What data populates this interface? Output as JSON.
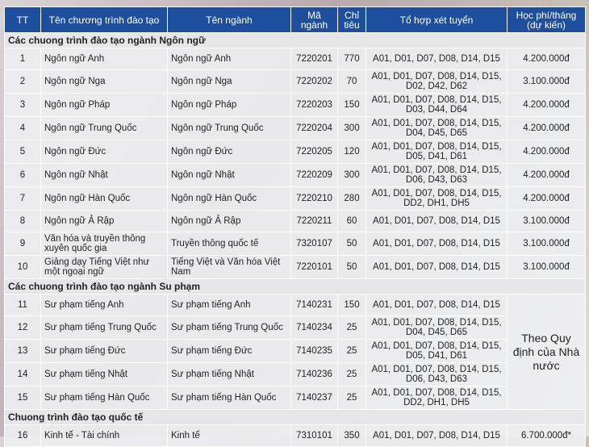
{
  "table": {
    "header": [
      "TT",
      "Tên chương trình đào tạo",
      "Tên ngành",
      "Mã ngành",
      "Chỉ tiêu",
      "Tổ hợp xét tuyển",
      "Học phí/tháng (dự kiến)"
    ],
    "sections": [
      {
        "title": "Các chuong trình đào tạo ngành Ngôn ngữ",
        "rows": [
          [
            "1",
            "Ngôn ngữ Anh",
            "Ngôn ngữ Anh",
            "7220201",
            "770",
            "A01, D01, D07, D08, D14, D15",
            "4.200.000đ"
          ],
          [
            "2",
            "Ngôn ngữ Nga",
            "Ngôn ngữ Nga",
            "7220202",
            "70",
            "A01, D01, D07, D08, D14, D15, D02, D42, D62",
            "3.100.000đ"
          ],
          [
            "3",
            "Ngôn ngữ Pháp",
            "Ngôn ngữ Pháp",
            "7220203",
            "150",
            "A01, D01, D07, D08, D14, D15, D03, D44, D64",
            "4.200.000đ"
          ],
          [
            "4",
            "Ngôn ngữ Trung Quốc",
            "Ngôn ngữ Trung Quốc",
            "7220204",
            "300",
            "A01, D01, D07, D08, D14, D15, D04, D45, D65",
            "4.200.000đ"
          ],
          [
            "5",
            "Ngôn ngữ Đức",
            "Ngôn ngữ Đức",
            "7220205",
            "120",
            "A01, D01, D07, D08, D14, D15, D05, D41, D61",
            "4.200.000đ"
          ],
          [
            "6",
            "Ngôn ngữ Nhật",
            "Ngôn ngữ Nhật",
            "7220209",
            "300",
            "A01, D01, D07, D08, D14, D15, D06, D43, D63",
            "4.200.000đ"
          ],
          [
            "7",
            "Ngôn ngữ Hàn Quốc",
            "Ngôn ngữ Hàn Quốc",
            "7220210",
            "280",
            "A01, D01, D07, D08, D14, D15, DD2, DH1, DH5",
            "4.200.000đ"
          ],
          [
            "8",
            "Ngôn ngữ Ả Rập",
            "Ngôn ngữ Ả Rập",
            "7220211",
            "60",
            "A01, D01, D07, D08, D14, D15",
            "3.100.000đ"
          ],
          [
            "9",
            "Văn hóa và truyền thông xuyên quốc gia",
            "Truyền thông quốc tế",
            "7320107",
            "50",
            "A01, D01, D07, D08, D14, D15",
            "3.100.000đ"
          ],
          [
            "10",
            "Giảng dạy Tiếng Việt như một ngoại ngữ",
            "Tiếng Việt và Văn hóa Việt Nam",
            "7220101",
            "50",
            "A01, D01, D07, D08, D14, D15",
            "3.100.000đ"
          ]
        ]
      },
      {
        "title": "Các chuong trình đào tạo ngành Su phạm",
        "fee": "Theo Quy định của Nhà nước",
        "rows": [
          [
            "11",
            "Sư phạm tiếng Anh",
            "Sư phạm tiếng Anh",
            "7140231",
            "150",
            "A01, D01, D07, D08, D14, D15"
          ],
          [
            "12",
            "Sư phạm tiếng Trung Quốc",
            "Sư phạm tiếng Trung Quốc",
            "7140234",
            "25",
            "A01, D01, D07, D08, D14, D15, D04, D45, D65"
          ],
          [
            "13",
            "Sư phạm tiếng Đức",
            "Sư phạm tiếng Đức",
            "7140235",
            "25",
            "A01, D01, D07, D08, D14, D15, D05, D41, D61"
          ],
          [
            "14",
            "Sư phạm tiếng Nhật",
            "Sư phạm tiếng Nhật",
            "7140236",
            "25",
            "A01, D01, D07, D08, D14, D15, D06, D43, D63"
          ],
          [
            "15",
            "Sư phạm tiếng Hàn Quốc",
            "Sư phạm tiếng Hàn Quốc",
            "7140237",
            "25",
            "A01, D01, D07, D08, D14, D15, DD2, DH1, DH5"
          ]
        ]
      },
      {
        "title": "Chuong trình đào tạo quốc tế",
        "rows": [
          [
            "16",
            "Kinh tế - Tài chính",
            "Kinh tế",
            "7310101",
            "350",
            "A01, D01, D07, D08, D14, D15",
            "6.700.000đ*"
          ]
        ]
      }
    ]
  }
}
